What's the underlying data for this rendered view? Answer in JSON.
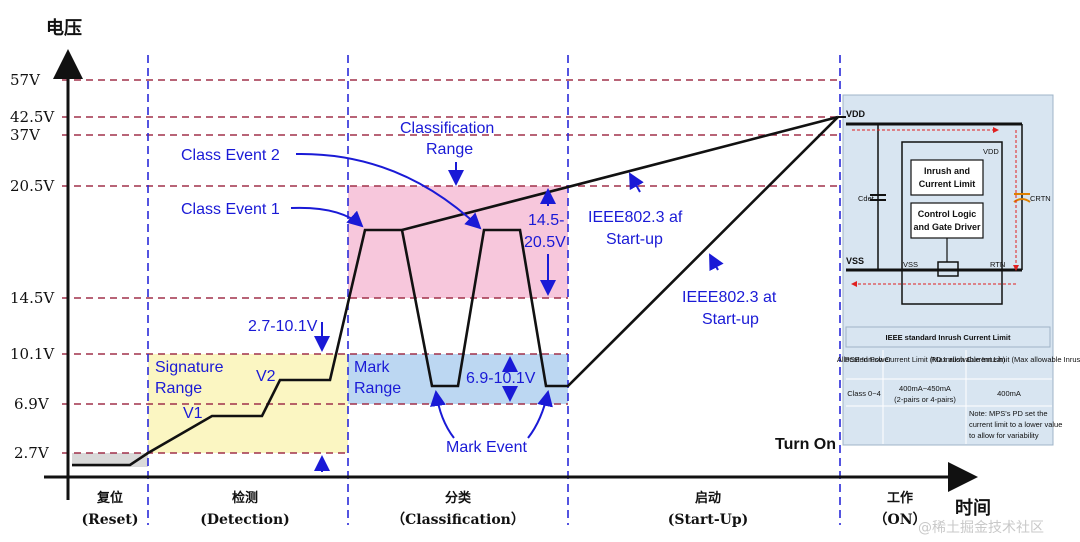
{
  "axes": {
    "y_title": "电压",
    "x_title": "时间"
  },
  "voltage_levels": [
    {
      "label": "57V"
    },
    {
      "label": "42.5V"
    },
    {
      "label": "37V"
    },
    {
      "label": "20.5V"
    },
    {
      "label": "14.5V"
    },
    {
      "label": "10.1V"
    },
    {
      "label": "6.9V"
    },
    {
      "label": "2.7V"
    }
  ],
  "phases": [
    {
      "cn": "复位",
      "en": "(Reset)"
    },
    {
      "cn": "检测",
      "en": "(Detection)"
    },
    {
      "cn": "分类",
      "en": "（Classification）"
    },
    {
      "cn": "启动",
      "en": "(Start-Up)"
    },
    {
      "cn": "工作",
      "en": "（ON）"
    }
  ],
  "annotations": {
    "classification_range_1": "Classification",
    "classification_range_2": "Range",
    "class_event_2": "Class Event 2",
    "class_event_1": "Class Event 1",
    "range_14_5_a": "14.5-",
    "range_14_5_b": "20.5V",
    "af_1": "IEEE802.3 af",
    "af_2": "Start-up",
    "at_1": "IEEE802.3 at",
    "at_2": "Start-up",
    "range_2_7": "2.7-10.1V",
    "signature_1": "Signature",
    "signature_2": "Range",
    "v1": "V1",
    "v2": "V2",
    "mark_range_1": "Mark",
    "mark_range_2": "Range",
    "range_6_9": "6.9-10.1V",
    "mark_event": "Mark Event",
    "turn_on": "Turn On"
  },
  "inset": {
    "vdd": "VDD",
    "vss": "VSS",
    "vdd_small": "VDD",
    "vss_small": "VSS",
    "rtn_small": "RTN",
    "cdet": "Cdet",
    "crtn": "CRTN",
    "inrush_1": "Inrush and",
    "inrush_2": "Current Limit",
    "control_1": "Control Logic",
    "control_2": "and Gate Driver",
    "table_title": "IEEE standard Inrush Current Limit",
    "table_headers": [
      "Allocated Power",
      "PSE Inrush Current Limit (Max allowable Inrush)",
      "PD Inrush Current Limit (Max allowable Inrush)"
    ],
    "row_class": "Class 0~4",
    "row_pse_1": "400mA~450mA",
    "row_pse_2": "(2-pairs or 4-pairs)",
    "row_pd": "400mA",
    "note_1": "Note: MPS's PD set the",
    "note_2": "current limit to a lower value",
    "note_3": "to allow for variability"
  },
  "watermark": "@稀土掘金技术社区",
  "colors": {
    "grid_red": "#a0304a",
    "phase_blue": "#2a2ad8",
    "text_blue": "#1a1ad6",
    "pink": "#f7c7dc",
    "light_blue": "#bcd7f2",
    "yellow": "#fbf6c2",
    "grey": "#d9d9d9",
    "inset_bg": "#d8e5f1"
  }
}
